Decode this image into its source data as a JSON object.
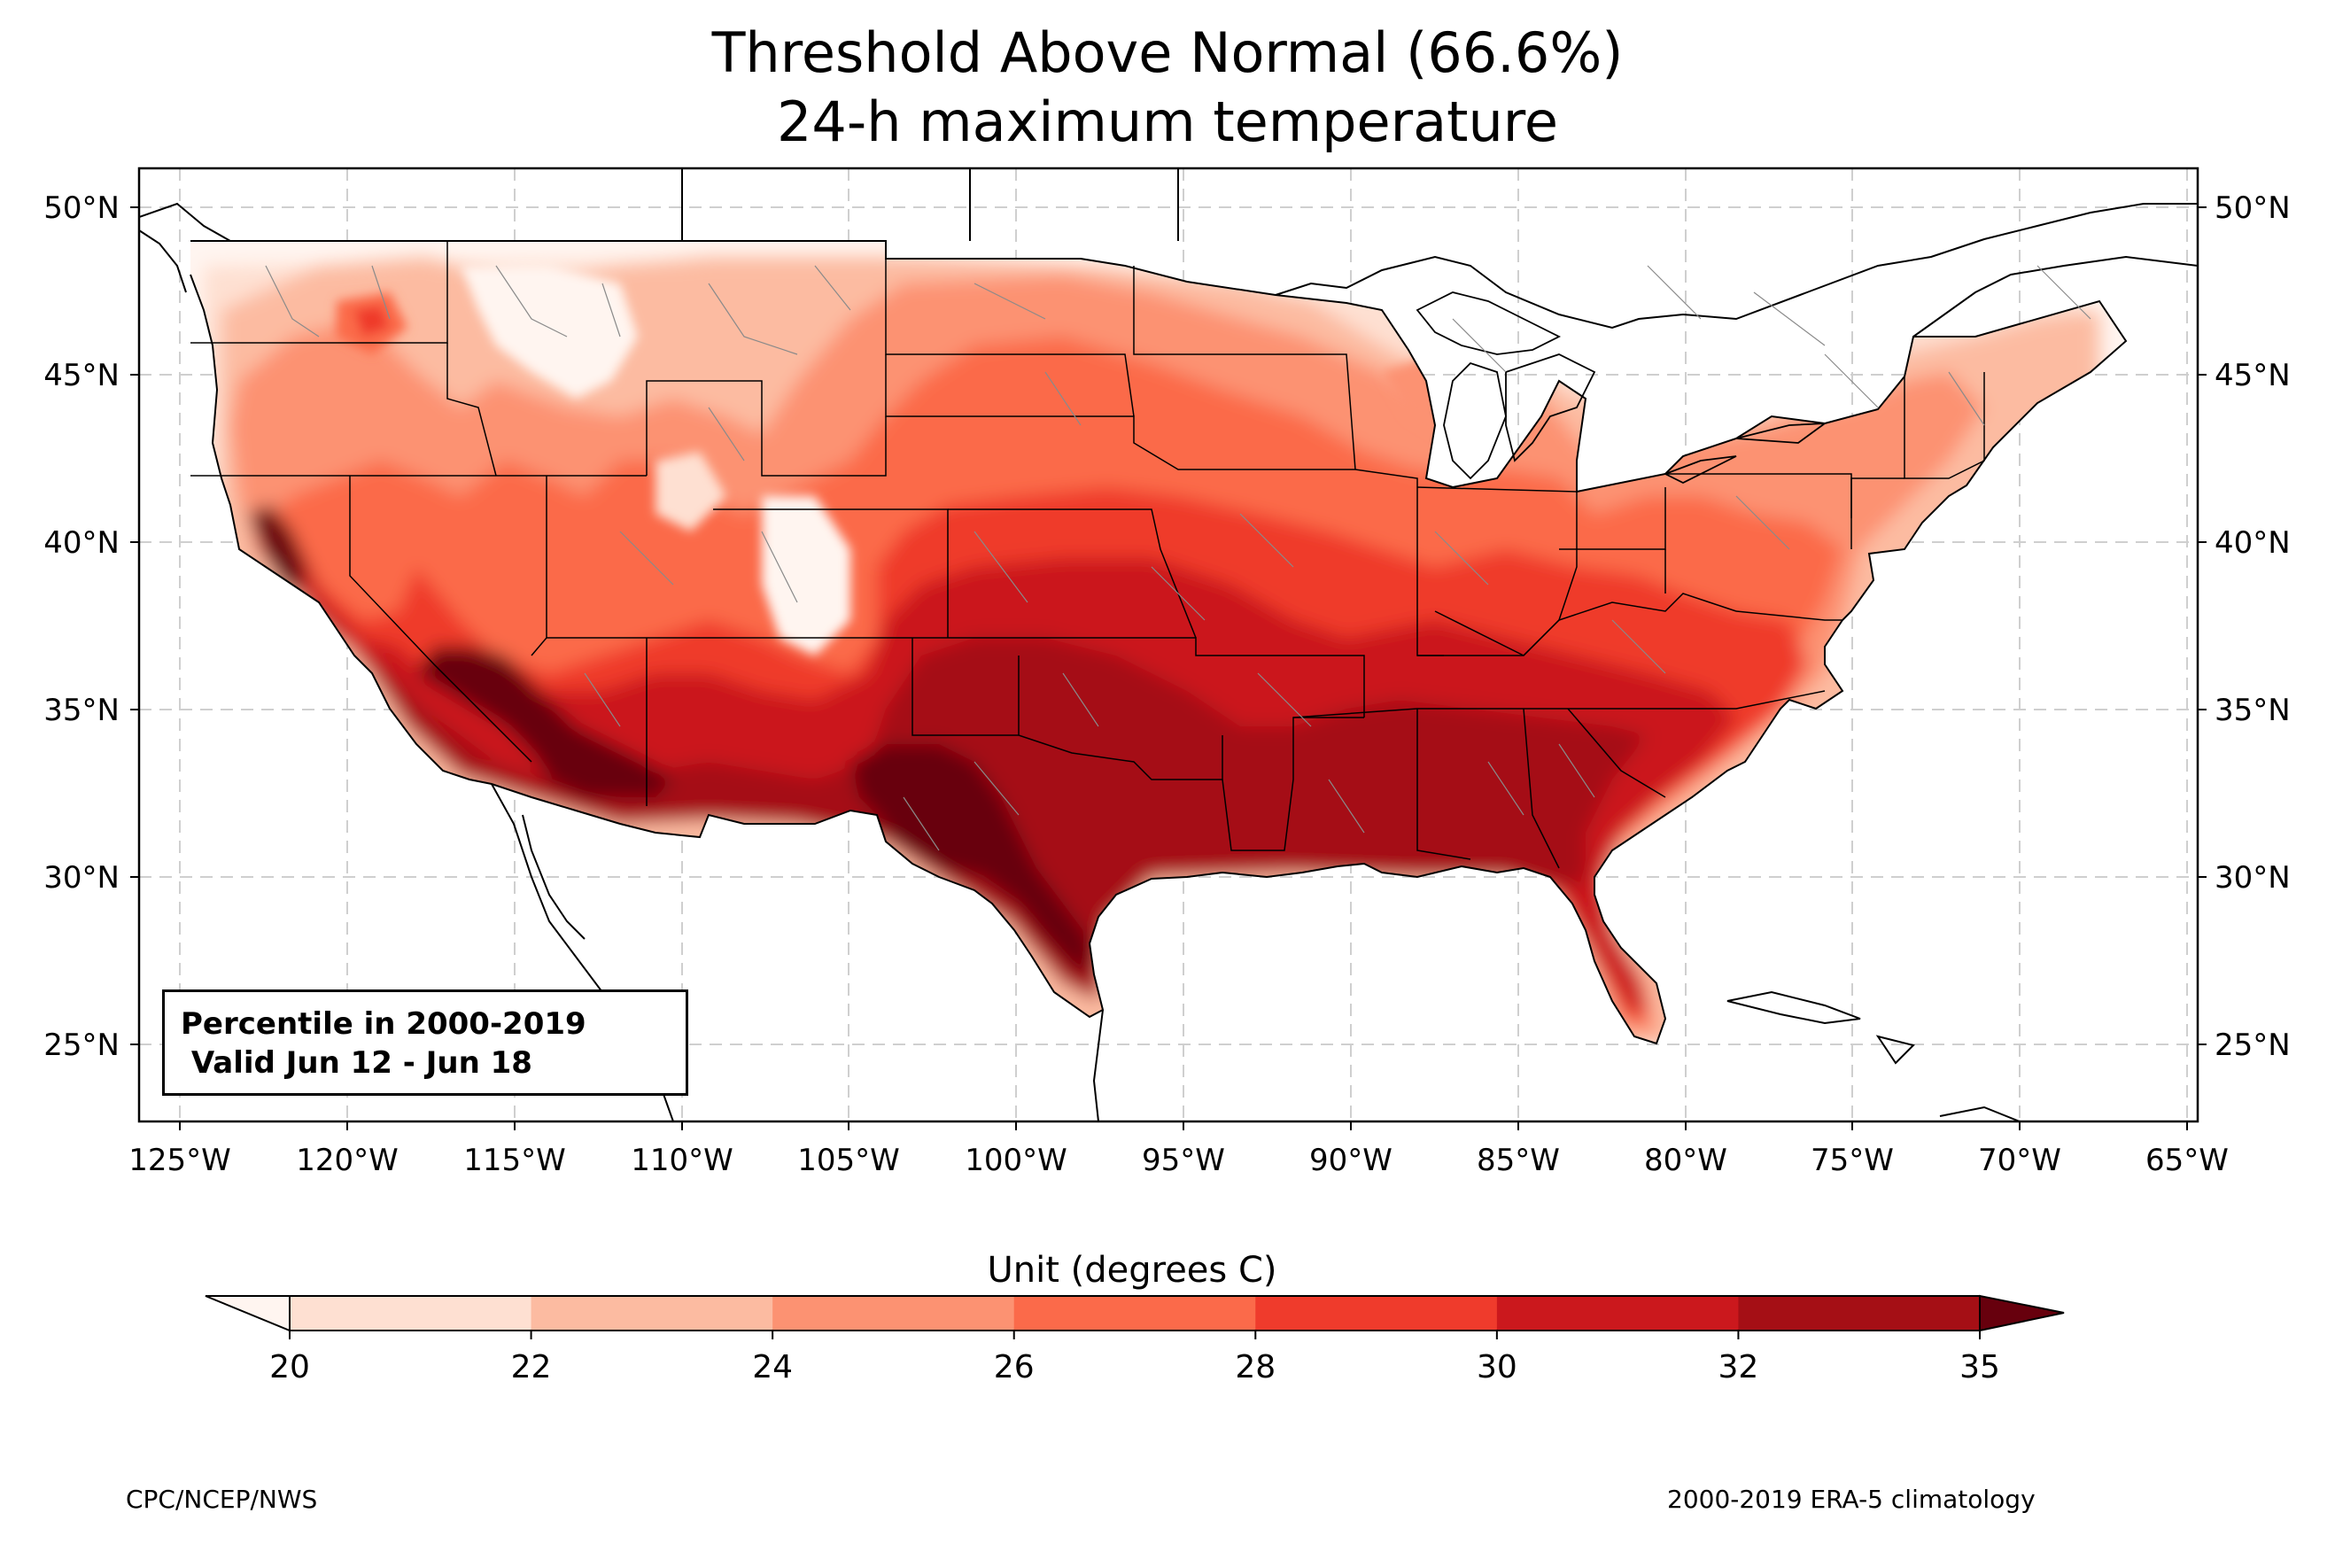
{
  "title": {
    "line1": "Threshold Above Normal (66.6%)",
    "line2": "24-h maximum temperature"
  },
  "map": {
    "lon_ticks": [
      "125°W",
      "120°W",
      "115°W",
      "110°W",
      "105°W",
      "100°W",
      "95°W",
      "90°W",
      "85°W",
      "80°W",
      "75°W",
      "70°W",
      "65°W"
    ],
    "lat_ticks": [
      "50°N",
      "45°N",
      "40°N",
      "35°N",
      "30°N",
      "25°N"
    ],
    "extent": {
      "lon_min": -126.3,
      "lon_max": -64.8,
      "lat_min": 22.8,
      "lat_max": 51.2
    },
    "gridlines": true,
    "info_box": {
      "line1": "Percentile in 2000-2019",
      "line2": " Valid Jun 12 - Jun 18"
    }
  },
  "colorbar": {
    "label": "Unit (degrees C)",
    "ticks": [
      "20",
      "22",
      "24",
      "26",
      "28",
      "30",
      "32",
      "35"
    ],
    "colors": [
      "#fee0d2",
      "#fcbba1",
      "#fc9272",
      "#fb6a4a",
      "#ef3b2c",
      "#cb181d",
      "#a50f15"
    ],
    "under_color": "#fff5f0",
    "over_color": "#67000d"
  },
  "footer": {
    "left": "CPC/NCEP/NWS",
    "right": "2000-2019 ERA-5 climatology"
  }
}
